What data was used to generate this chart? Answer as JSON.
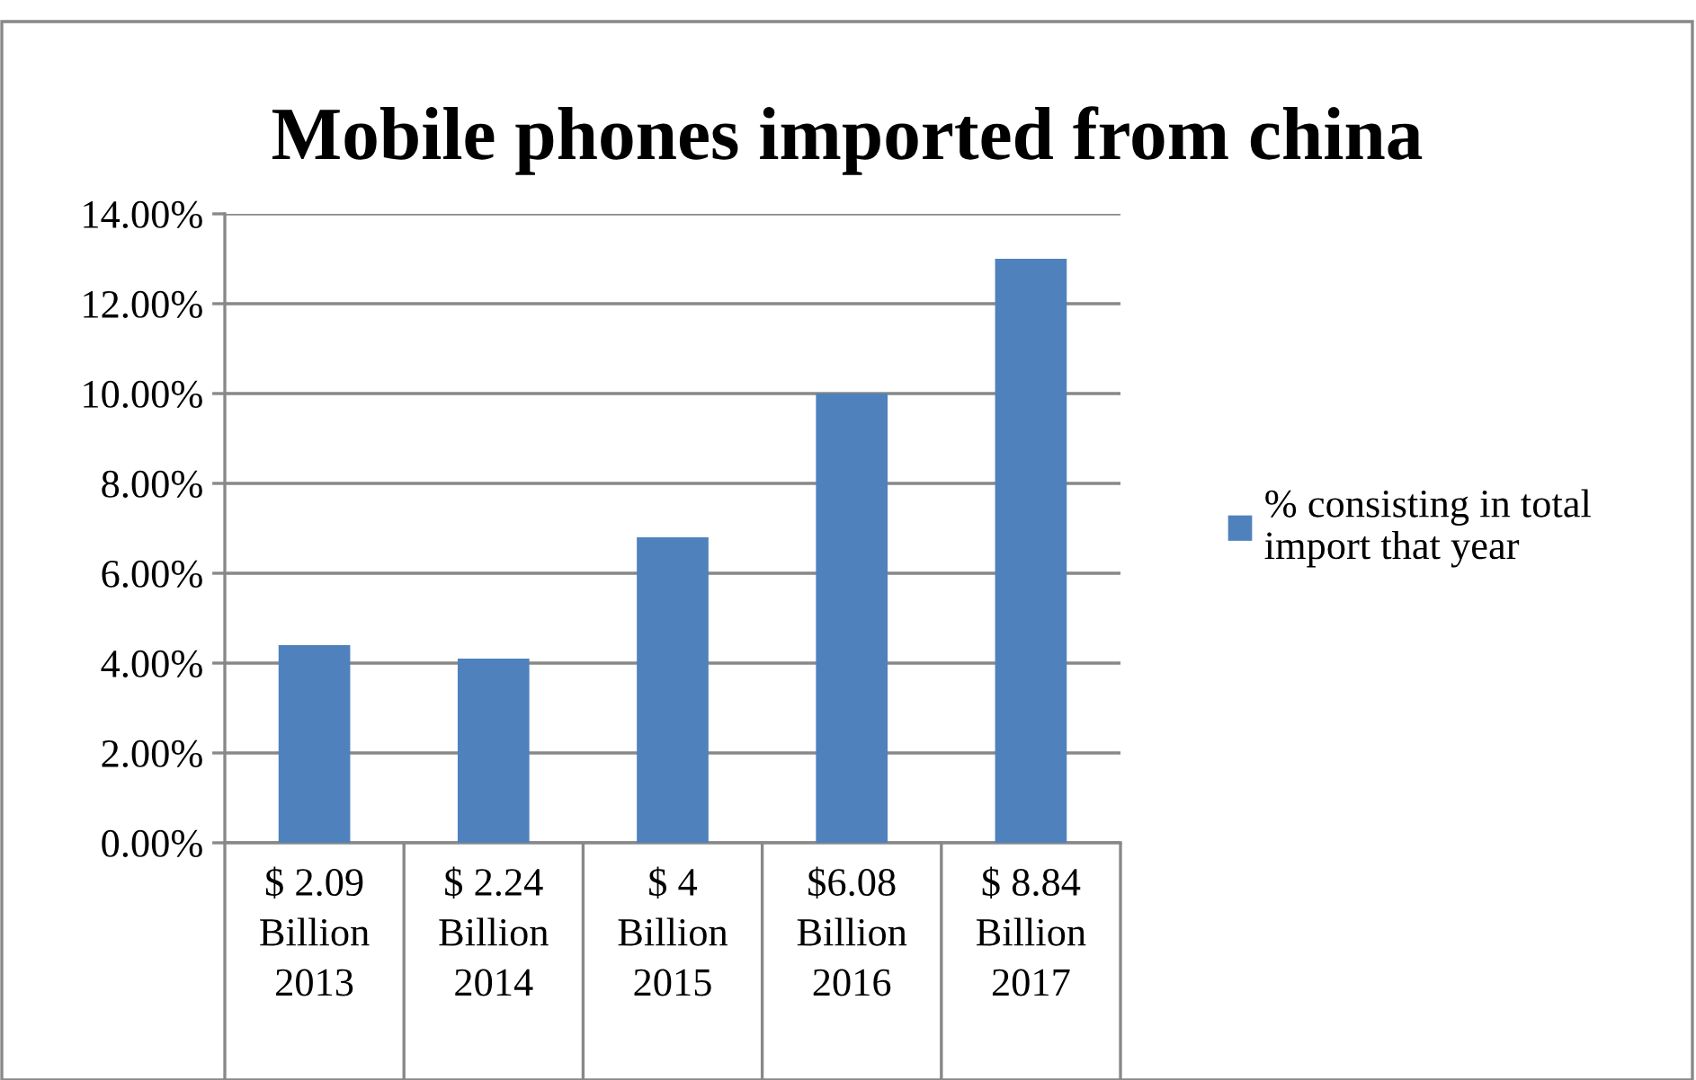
{
  "chart_data": {
    "type": "bar",
    "title": "Mobile phones imported from china",
    "categories": [
      "$ 2.09\nBillion\n2013",
      "$ 2.24\nBillion\n2014",
      "$ 4\nBillion\n2015",
      "$6.08\nBillion\n2016",
      "$ 8.84\nBillion\n2017"
    ],
    "series": [
      {
        "name": "% consisting in total\nimport that year",
        "color": "#4f81bd",
        "values": [
          4.4,
          4.1,
          6.8,
          10,
          13
        ]
      }
    ],
    "ylim": [
      0,
      14
    ],
    "yticks": [
      {
        "value": 0,
        "label": "0.00%"
      },
      {
        "value": 2,
        "label": "2.00%"
      },
      {
        "value": 4,
        "label": "4.00%"
      },
      {
        "value": 6,
        "label": "6.00%"
      },
      {
        "value": 8,
        "label": "8.00%"
      },
      {
        "value": 10,
        "label": "10.00%"
      },
      {
        "value": 12,
        "label": "12.00%"
      },
      {
        "value": 14,
        "label": "14.00%"
      }
    ],
    "grid": "y",
    "legend": "right"
  }
}
